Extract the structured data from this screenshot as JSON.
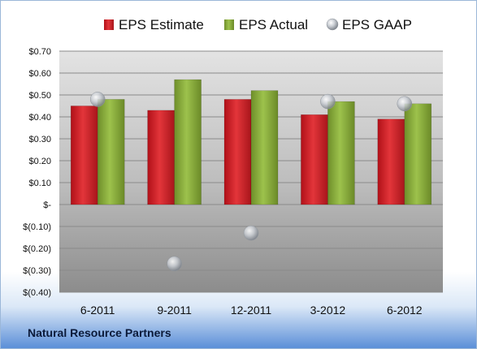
{
  "company": "Natural Resource Partners",
  "chart_data": {
    "type": "bar",
    "categories": [
      "6-2011",
      "9-2011",
      "12-2011",
      "3-2012",
      "6-2012"
    ],
    "series": [
      {
        "name": "EPS Estimate",
        "kind": "bar",
        "color": "#e0262c",
        "values": [
          0.45,
          0.43,
          0.48,
          0.41,
          0.39
        ]
      },
      {
        "name": "EPS Actual",
        "kind": "bar",
        "color": "#8fb340",
        "values": [
          0.48,
          0.57,
          0.52,
          0.47,
          0.46
        ]
      },
      {
        "name": "EPS GAAP",
        "kind": "marker",
        "color": "#b9bec6",
        "values": [
          0.48,
          -0.27,
          -0.13,
          0.47,
          0.46
        ]
      }
    ],
    "ylim": [
      -0.4,
      0.7
    ],
    "yticks": [
      0.7,
      0.6,
      0.5,
      0.4,
      0.3,
      0.2,
      0.1,
      0.0,
      -0.1,
      -0.2,
      -0.3,
      -0.4
    ],
    "ytick_labels": [
      "$0.70",
      "$0.60",
      "$0.50",
      "$0.40",
      "$0.30",
      "$0.20",
      "$0.10",
      "$-",
      "$(0.10)",
      "$(0.20)",
      "$(0.30)",
      "$(0.40)"
    ],
    "legend_position": "top",
    "grid": true
  }
}
